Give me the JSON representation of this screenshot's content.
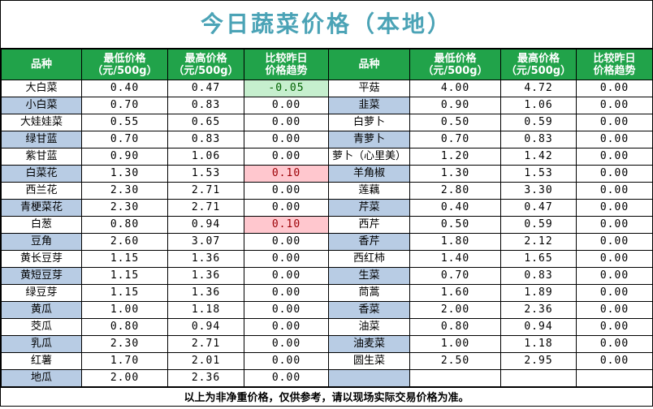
{
  "title": "今日蔬菜价格（本地）",
  "headers": [
    "品种",
    "最低价格\n（元/500g）",
    "最高价格\n（元/500g）",
    "比较昨日\n价格趋势",
    "品种",
    "最低价格\n（元/500g）",
    "最高价格\n（元/500g）",
    "比较昨日\n价格趋势"
  ],
  "colors": {
    "header_bg": "#21a34a",
    "title": "#4ba3b6",
    "row_blue": "#b8cce4",
    "down_bg": "#c6efce",
    "up_bg": "#ffc7ce"
  },
  "rows": [
    {
      "left": [
        "大白菜",
        "0.40",
        "0.47",
        "-0.05"
      ],
      "right": [
        "平菇",
        "4.00",
        "4.72",
        "0.00"
      ]
    },
    {
      "left": [
        "小白菜",
        "0.70",
        "0.83",
        "0.00"
      ],
      "right": [
        "韭菜",
        "0.90",
        "1.06",
        "0.00"
      ]
    },
    {
      "left": [
        "大娃娃菜",
        "0.55",
        "0.65",
        "0.00"
      ],
      "right": [
        "白萝卜",
        "0.50",
        "0.59",
        "0.00"
      ]
    },
    {
      "left": [
        "绿甘蓝",
        "0.70",
        "0.83",
        "0.00"
      ],
      "right": [
        "青萝卜",
        "0.70",
        "0.83",
        "0.00"
      ]
    },
    {
      "left": [
        "紫甘蓝",
        "0.90",
        "1.06",
        "0.00"
      ],
      "right": [
        "萝卜（心里美）",
        "1.20",
        "1.42",
        "0.00"
      ]
    },
    {
      "left": [
        "白菜花",
        "1.30",
        "1.53",
        "0.10"
      ],
      "right": [
        "羊角椒",
        "1.30",
        "1.53",
        "0.00"
      ]
    },
    {
      "left": [
        "西兰花",
        "2.30",
        "2.71",
        "0.00"
      ],
      "right": [
        "莲藕",
        "2.80",
        "3.30",
        "0.00"
      ]
    },
    {
      "left": [
        "青梗菜花",
        "2.30",
        "2.71",
        "0.00"
      ],
      "right": [
        "芹菜",
        "0.40",
        "0.47",
        "0.00"
      ]
    },
    {
      "left": [
        "白葱",
        "0.80",
        "0.94",
        "0.10"
      ],
      "right": [
        "西芹",
        "0.50",
        "0.59",
        "0.00"
      ]
    },
    {
      "left": [
        "豆角",
        "2.60",
        "3.07",
        "0.00"
      ],
      "right": [
        "香芹",
        "1.80",
        "2.12",
        "0.00"
      ]
    },
    {
      "left": [
        "黄长豆芽",
        "1.15",
        "1.36",
        "0.00"
      ],
      "right": [
        "西红柿",
        "1.40",
        "1.65",
        "0.00"
      ]
    },
    {
      "left": [
        "黄短豆芽",
        "1.15",
        "1.36",
        "0.00"
      ],
      "right": [
        "生菜",
        "0.70",
        "0.83",
        "0.00"
      ]
    },
    {
      "left": [
        "绿豆芽",
        "1.15",
        "1.36",
        "0.00"
      ],
      "right": [
        "茼蒿",
        "1.60",
        "1.89",
        "0.00"
      ]
    },
    {
      "left": [
        "黄瓜",
        "1.00",
        "1.18",
        "0.00"
      ],
      "right": [
        "香菜",
        "2.00",
        "2.36",
        "0.00"
      ]
    },
    {
      "left": [
        "茭瓜",
        "0.80",
        "0.94",
        "0.00"
      ],
      "right": [
        "油菜",
        "0.80",
        "0.94",
        "0.00"
      ]
    },
    {
      "left": [
        "乳瓜",
        "2.30",
        "2.71",
        "0.00"
      ],
      "right": [
        "油麦菜",
        "1.00",
        "1.18",
        "0.00"
      ]
    },
    {
      "left": [
        "红薯",
        "1.70",
        "2.01",
        "0.00"
      ],
      "right": [
        "圆生菜",
        "2.50",
        "2.95",
        "0.00"
      ]
    },
    {
      "left": [
        "地瓜",
        "2.00",
        "2.36",
        "0.00"
      ],
      "right": [
        "",
        "",
        "",
        ""
      ]
    }
  ],
  "footer": "以上为非净重价格，仅供参考，请以现场实际交易价格为准。"
}
